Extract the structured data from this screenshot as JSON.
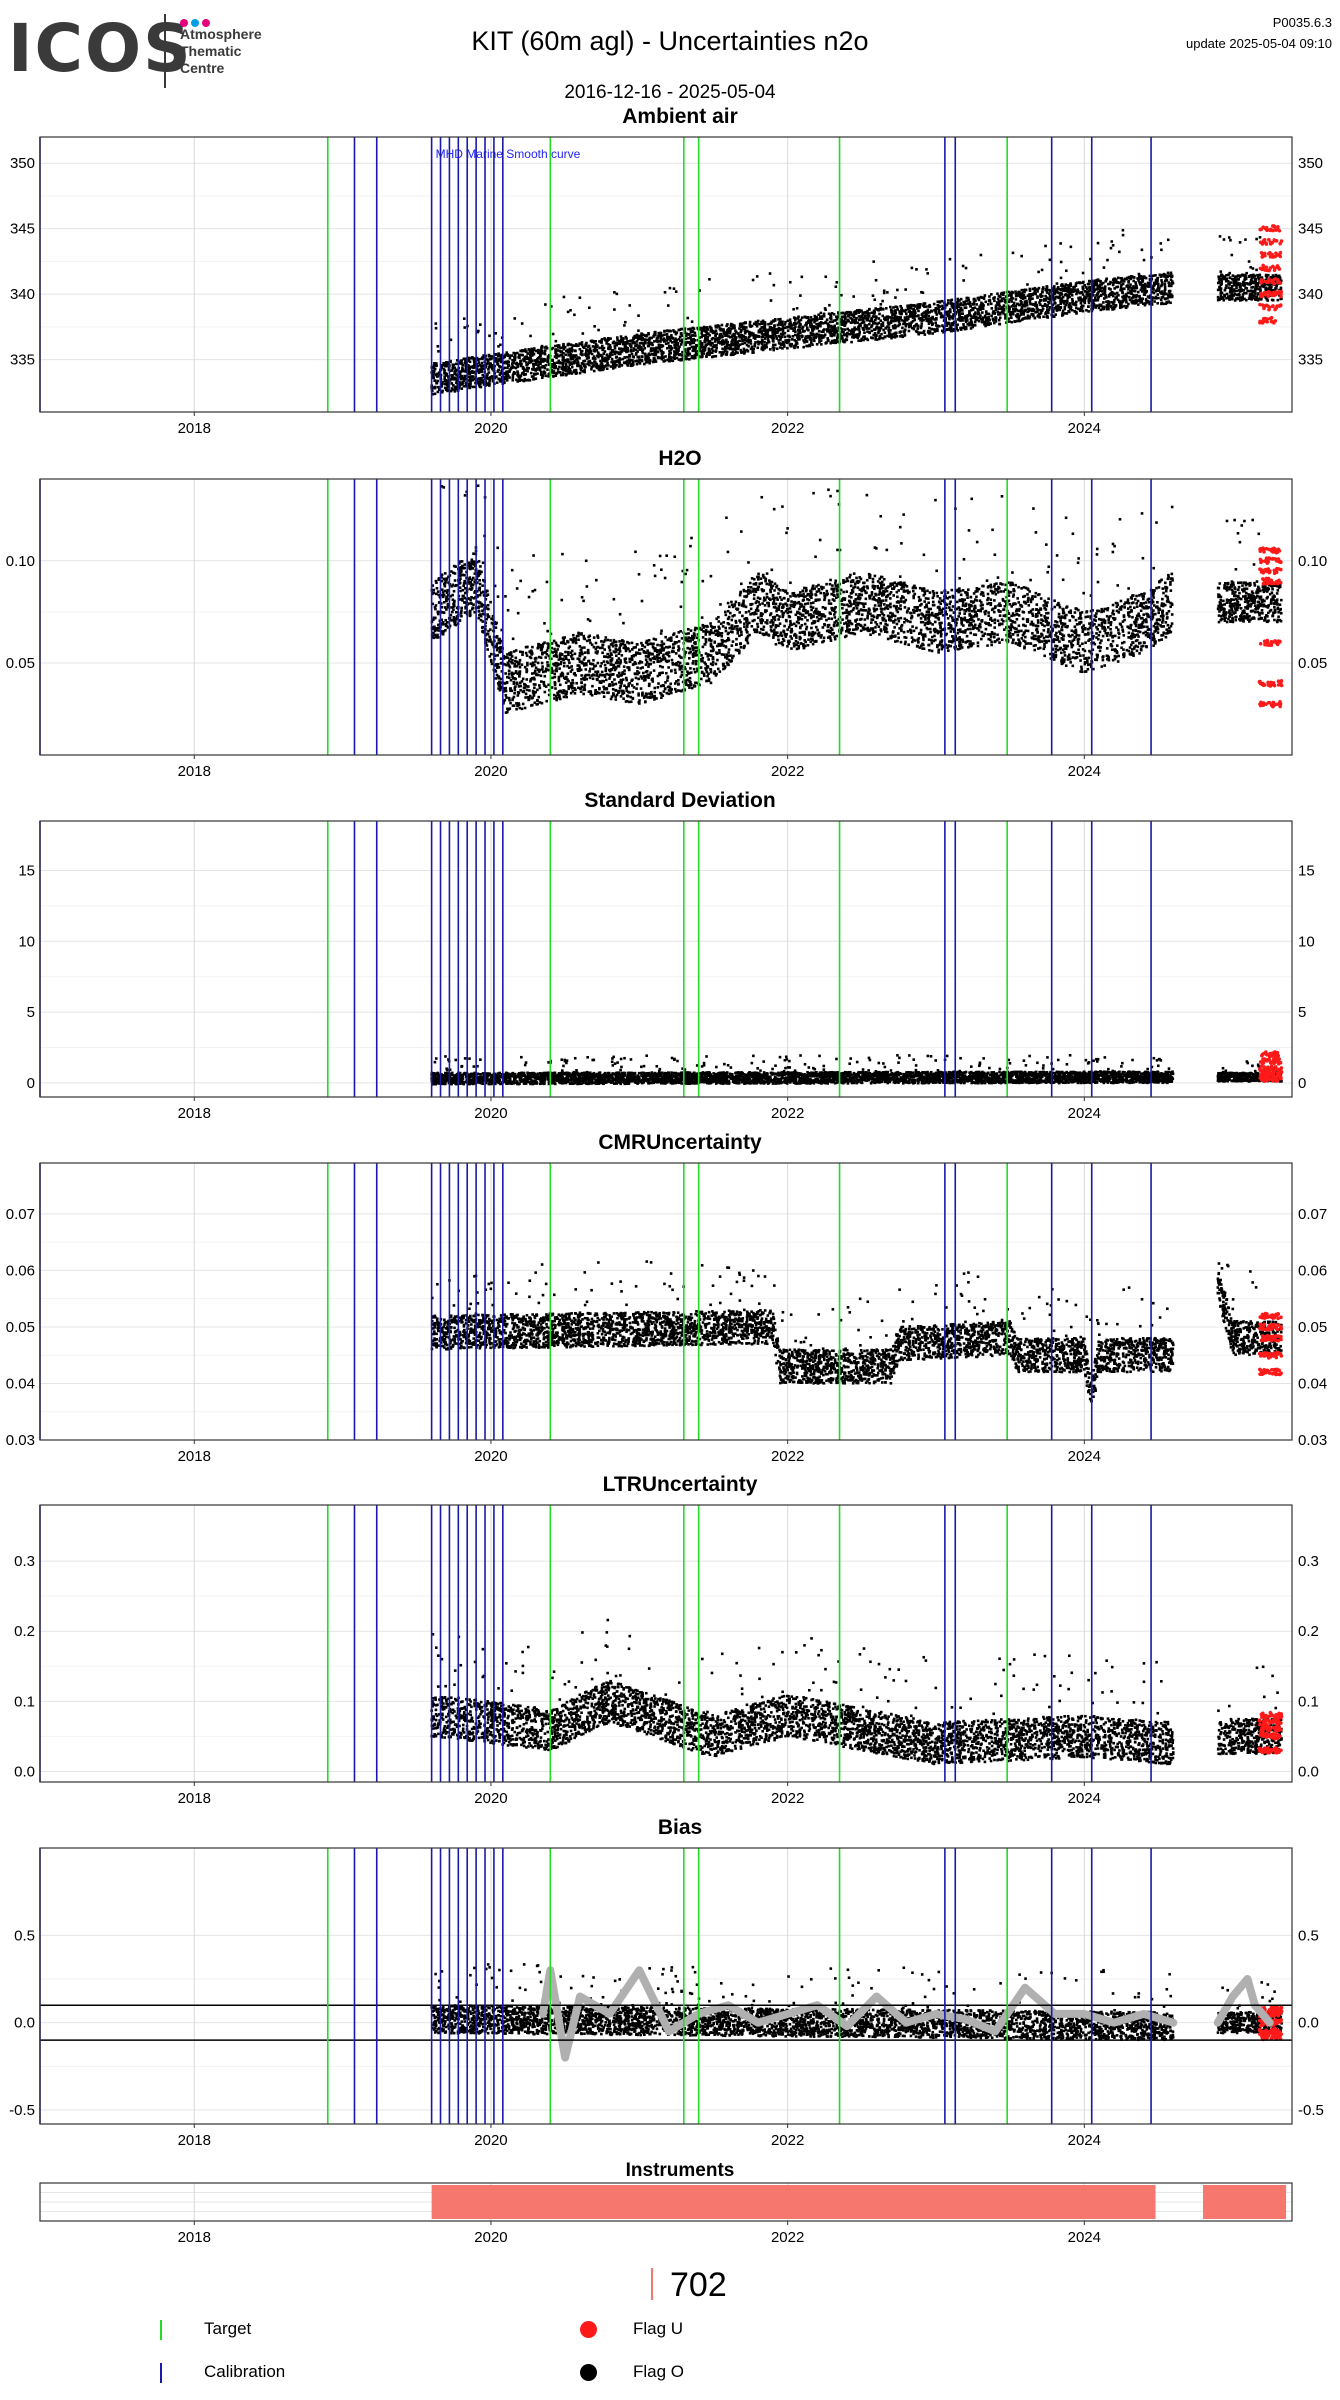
{
  "header": {
    "logo_text": "ICOS",
    "logo_subtitle": [
      "Atmosphere",
      "Thematic",
      "Centre"
    ],
    "logo_dot_colors": [
      "#e6007e",
      "#009fe3",
      "#e6007e"
    ],
    "title": "KIT  (60m agl) - Uncertainties n2o",
    "date_range": "2016-12-16 - 2025-05-04",
    "version": "P0035.6.3",
    "update": "update  2025-05-04 09:10"
  },
  "colors": {
    "target": "#22dd22",
    "calibration": "#1a1aaa",
    "flag_u": "#ff1a1a",
    "flag_o": "#000000",
    "instrument": "#f5776e",
    "grey_smooth": "#b0b0b0"
  },
  "chart_data": [
    {
      "type": "scatter",
      "title": "Ambient air",
      "annotation": "MHD Marine Smooth curve",
      "x_ticks": [
        "2018",
        "2020",
        "2022",
        "2024"
      ],
      "y_ticks": [
        "335",
        "340",
        "345",
        "350"
      ],
      "y_tick_values": [
        335,
        340,
        345,
        350
      ],
      "ylim": [
        331,
        352
      ],
      "xlim": [
        2016.96,
        2025.4
      ],
      "trend": [
        [
          2019.6,
          333.5
        ],
        [
          2020.0,
          334.2
        ],
        [
          2021.0,
          335.8
        ],
        [
          2022.0,
          337.0
        ],
        [
          2023.0,
          338.2
        ],
        [
          2024.0,
          339.8
        ],
        [
          2024.6,
          340.5
        ]
      ],
      "segments": [
        [
          2019.6,
          2024.6,
          1.2
        ],
        [
          2024.9,
          2025.33,
          1.0
        ]
      ],
      "flag_u_segment": [
        2025.18,
        2025.33
      ],
      "flag_u_values": [
        340,
        342,
        344,
        339,
        341,
        343,
        345,
        338,
        340
      ],
      "grid": true
    },
    {
      "type": "scatter",
      "title": "H2O",
      "x_ticks": [
        "2018",
        "2020",
        "2022",
        "2024"
      ],
      "y_ticks": [
        "0.05",
        "0.10"
      ],
      "y_tick_values": [
        0.05,
        0.1
      ],
      "ylim": [
        0.005,
        0.14
      ],
      "xlim": [
        2016.96,
        2025.4
      ],
      "trend": [
        [
          2019.6,
          0.075
        ],
        [
          2019.9,
          0.09
        ],
        [
          2020.1,
          0.04
        ],
        [
          2020.6,
          0.05
        ],
        [
          2021.0,
          0.045
        ],
        [
          2021.5,
          0.055
        ],
        [
          2021.8,
          0.08
        ],
        [
          2022.0,
          0.07
        ],
        [
          2022.5,
          0.08
        ],
        [
          2023.0,
          0.07
        ],
        [
          2023.5,
          0.075
        ],
        [
          2024.0,
          0.06
        ],
        [
          2024.4,
          0.07
        ],
        [
          2024.6,
          0.08
        ]
      ],
      "segments": [
        [
          2019.6,
          2024.6,
          0.015
        ],
        [
          2024.9,
          2025.33,
          0.01
        ]
      ],
      "flag_u_segment": [
        2025.18,
        2025.33
      ],
      "flag_u_values": [
        0.1,
        0.095,
        0.06,
        0.04,
        0.03,
        0.105,
        0.09
      ],
      "grid": true
    },
    {
      "type": "scatter",
      "title": "Standard Deviation",
      "x_ticks": [
        "2018",
        "2020",
        "2022",
        "2024"
      ],
      "y_ticks": [
        "0",
        "5",
        "10",
        "15"
      ],
      "y_tick_values": [
        0,
        5,
        10,
        15
      ],
      "ylim": [
        -1,
        18.5
      ],
      "xlim": [
        2016.96,
        2025.4
      ],
      "trend": [
        [
          2019.6,
          0.3
        ],
        [
          2024.6,
          0.4
        ]
      ],
      "segments": [
        [
          2019.6,
          2024.6,
          0.4
        ],
        [
          2024.9,
          2025.33,
          0.3
        ]
      ],
      "flag_u_segment": [
        2025.18,
        2025.33
      ],
      "flag_u_values": [
        0.5,
        1,
        1.5,
        2,
        0.3,
        0.8
      ],
      "grid": true
    },
    {
      "type": "scatter",
      "title": "CMRUncertainty",
      "x_ticks": [
        "2018",
        "2020",
        "2022",
        "2024"
      ],
      "y_ticks": [
        "0.03",
        "0.04",
        "0.05",
        "0.06",
        "0.07"
      ],
      "y_tick_values": [
        0.03,
        0.04,
        0.05,
        0.06,
        0.07
      ],
      "ylim": [
        0.03,
        0.079
      ],
      "xlim": [
        2016.96,
        2025.4
      ],
      "trend": [
        [
          2019.6,
          0.049
        ],
        [
          2021.9,
          0.05
        ],
        [
          2021.95,
          0.043
        ],
        [
          2022.7,
          0.043
        ],
        [
          2022.75,
          0.047
        ],
        [
          2023.5,
          0.048
        ],
        [
          2023.55,
          0.045
        ],
        [
          2024.0,
          0.045
        ],
        [
          2024.05,
          0.038
        ],
        [
          2024.1,
          0.045
        ],
        [
          2024.6,
          0.045
        ],
        [
          2024.9,
          0.058
        ],
        [
          2025.0,
          0.048
        ],
        [
          2025.33,
          0.048
        ]
      ],
      "segments": [
        [
          2019.6,
          2024.6,
          0.003
        ],
        [
          2024.9,
          2025.33,
          0.003
        ]
      ],
      "flag_u_segment": [
        2025.18,
        2025.33
      ],
      "flag_u_values": [
        0.045,
        0.05,
        0.042,
        0.048,
        0.052
      ],
      "grid": true
    },
    {
      "type": "scatter",
      "title": "LTRUncertainty",
      "x_ticks": [
        "2018",
        "2020",
        "2022",
        "2024"
      ],
      "y_ticks": [
        "0.0",
        "0.1",
        "0.2",
        "0.3"
      ],
      "y_tick_values": [
        0.0,
        0.1,
        0.2,
        0.3
      ],
      "ylim": [
        -0.015,
        0.38
      ],
      "xlim": [
        2016.96,
        2025.4
      ],
      "trend": [
        [
          2019.6,
          0.08
        ],
        [
          2020.4,
          0.06
        ],
        [
          2020.8,
          0.1
        ],
        [
          2021.5,
          0.05
        ],
        [
          2022.0,
          0.08
        ],
        [
          2023.0,
          0.04
        ],
        [
          2024.0,
          0.05
        ],
        [
          2024.6,
          0.04
        ],
        [
          2024.9,
          0.05
        ],
        [
          2025.33,
          0.05
        ]
      ],
      "segments": [
        [
          2019.6,
          2024.6,
          0.03
        ],
        [
          2024.9,
          2025.33,
          0.025
        ]
      ],
      "flag_u_segment": [
        2025.18,
        2025.33
      ],
      "flag_u_values": [
        0.05,
        0.07,
        0.03,
        0.06,
        0.08
      ],
      "grid": true
    },
    {
      "type": "scatter",
      "title": "Bias",
      "x_ticks": [
        "2018",
        "2020",
        "2022",
        "2024"
      ],
      "y_ticks": [
        "-0.5",
        "0.0",
        "0.5"
      ],
      "y_tick_values": [
        -0.5,
        0.0,
        0.5
      ],
      "ylim": [
        -0.58,
        1.0
      ],
      "xlim": [
        2016.96,
        2025.4
      ],
      "hlines": [
        0.1,
        -0.1
      ],
      "trend": [
        [
          2019.6,
          0.02
        ],
        [
          2024.6,
          -0.02
        ],
        [
          2024.9,
          0.0
        ],
        [
          2025.33,
          0.0
        ]
      ],
      "segments": [
        [
          2019.6,
          2024.6,
          0.08
        ],
        [
          2024.9,
          2025.33,
          0.06
        ]
      ],
      "flag_u_segment": [
        2025.18,
        2025.33
      ],
      "flag_u_values": [
        0.0,
        0.05,
        -0.05,
        0.08,
        -0.08
      ],
      "grey_smooth": [
        [
          2020.35,
          0.05
        ],
        [
          2020.4,
          0.3
        ],
        [
          2020.5,
          -0.2
        ],
        [
          2020.6,
          0.15
        ],
        [
          2020.8,
          0.05
        ],
        [
          2021.0,
          0.3
        ],
        [
          2021.2,
          -0.05
        ],
        [
          2021.4,
          0.05
        ],
        [
          2021.6,
          0.1
        ],
        [
          2021.8,
          0.0
        ],
        [
          2022.0,
          0.05
        ],
        [
          2022.2,
          0.1
        ],
        [
          2022.4,
          -0.02
        ],
        [
          2022.6,
          0.15
        ],
        [
          2022.8,
          0.0
        ],
        [
          2023.0,
          0.05
        ],
        [
          2023.2,
          0.02
        ],
        [
          2023.4,
          -0.05
        ],
        [
          2023.6,
          0.2
        ],
        [
          2023.8,
          0.05
        ],
        [
          2024.0,
          0.05
        ],
        [
          2024.2,
          0.0
        ],
        [
          2024.4,
          0.05
        ],
        [
          2024.6,
          0.0
        ]
      ],
      "grey_smooth_2": [
        [
          2024.9,
          0.0
        ],
        [
          2025.0,
          0.15
        ],
        [
          2025.1,
          0.25
        ],
        [
          2025.15,
          0.1
        ],
        [
          2025.25,
          0.0
        ]
      ],
      "grid": true
    },
    {
      "type": "bar",
      "title": "Instruments",
      "x_ticks": [
        "2018",
        "2020",
        "2022",
        "2024"
      ],
      "xlim": [
        2016.96,
        2025.4
      ],
      "bars": [
        [
          2019.6,
          2024.48
        ],
        [
          2024.8,
          2025.36
        ]
      ]
    }
  ],
  "instrument_label": "702",
  "legend": {
    "target": "Target",
    "calibration": "Calibration",
    "flag_u": "Flag U",
    "flag_o": "Flag O"
  },
  "vlines": {
    "target": [
      2018.9,
      2020.4,
      2021.3,
      2021.4,
      2022.35,
      2023.48
    ],
    "calibration": [
      2016.96,
      2019.08,
      2019.23,
      2019.6,
      2019.66,
      2019.72,
      2019.78,
      2019.84,
      2019.9,
      2019.96,
      2020.02,
      2020.08,
      2023.06,
      2023.13,
      2023.78,
      2024.05,
      2024.45
    ]
  }
}
